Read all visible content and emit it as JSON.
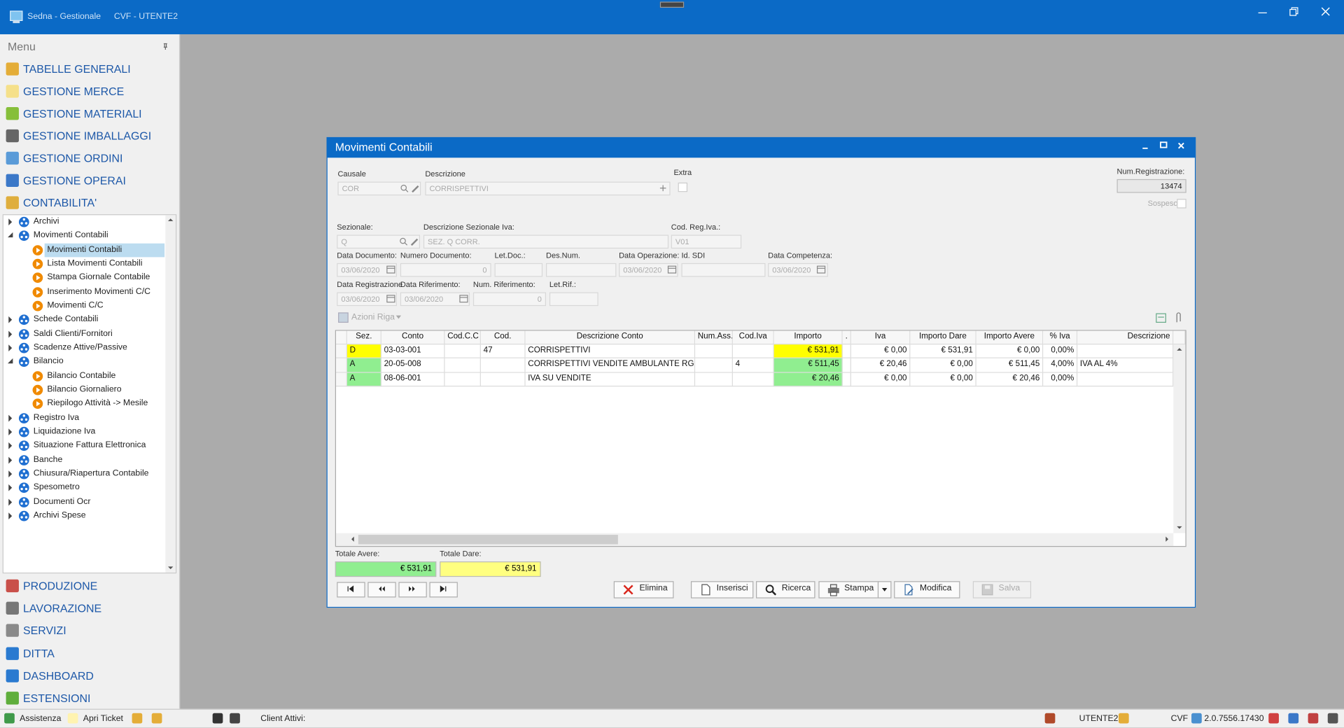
{
  "titlebar": {
    "app": "Sedna  - Gestionale",
    "company": "CVF - UTENTE2"
  },
  "menu": {
    "title": "Menu",
    "top_items": [
      "TABELLE GENERALI",
      "GESTIONE MERCE",
      "GESTIONE MATERIALI",
      "GESTIONE IMBALLAGGI",
      "GESTIONE ORDINI",
      "GESTIONE OPERAI",
      "CONTABILITA'"
    ],
    "tree": [
      {
        "label": "Archivi"
      },
      {
        "label": "Movimenti Contabili",
        "children": [
          {
            "label": "Movimenti Contabili",
            "selected": true
          },
          {
            "label": "Lista Movimenti Contabili"
          },
          {
            "label": "Stampa Giornale Contabile"
          },
          {
            "label": "Inserimento Movimenti C/C"
          },
          {
            "label": "Movimenti C/C"
          }
        ]
      },
      {
        "label": "Schede Contabili"
      },
      {
        "label": "Saldi Clienti/Fornitori"
      },
      {
        "label": "Scadenze Attive/Passive"
      },
      {
        "label": "Bilancio",
        "children": [
          {
            "label": "Bilancio Contabile"
          },
          {
            "label": "Bilancio Giornaliero"
          },
          {
            "label": "Riepilogo Attività -> Mesile"
          }
        ]
      },
      {
        "label": "Registro Iva"
      },
      {
        "label": "Liquidazione Iva"
      },
      {
        "label": "Situazione Fattura Elettronica"
      },
      {
        "label": "Banche"
      },
      {
        "label": "Chiusura/Riapertura Contabile"
      },
      {
        "label": "Spesometro"
      },
      {
        "label": "Documenti Ocr"
      },
      {
        "label": "Archivi Spese"
      }
    ],
    "bottom_items": [
      "PRODUZIONE",
      "LAVORAZIONE",
      "SERVIZI",
      "DITTA",
      "DASHBOARD",
      "ESTENSIONI"
    ]
  },
  "window": {
    "title": "Movimenti Contabili",
    "fields": {
      "causale": {
        "label": "Causale",
        "value": "COR"
      },
      "descrizione": {
        "label": "Descrizione",
        "value": "CORRISPETTIVI"
      },
      "extra": {
        "label": "Extra"
      },
      "num_registrazione": {
        "label": "Num.Registrazione:",
        "value": "13474"
      },
      "sospeso": {
        "label": "Sospeso"
      },
      "sezionale": {
        "label": "Sezionale:",
        "value": "Q"
      },
      "descrizione_sezionale": {
        "label": "Descrizione Sezionale Iva:",
        "value": "SEZ. Q CORR."
      },
      "cod_reg_iva": {
        "label": "Cod. Reg.Iva.:",
        "value": "V01"
      },
      "data_documento": {
        "label": "Data Documento:",
        "value": "03/06/2020"
      },
      "numero_documento": {
        "label": "Numero Documento:",
        "value": "0"
      },
      "let_doc": {
        "label": "Let.Doc.:"
      },
      "des_num": {
        "label": "Des.Num."
      },
      "data_operazione": {
        "label": "Data Operazione:",
        "value": "03/06/2020"
      },
      "id_sdi": {
        "label": "Id. SDI"
      },
      "data_competenza": {
        "label": "Data Competenza:",
        "value": "03/06/2020"
      },
      "data_registrazione": {
        "label": "Data Registrazione",
        "value": "03/06/2020"
      },
      "data_riferimento": {
        "label": "Data Riferimento:",
        "value": "03/06/2020"
      },
      "num_riferimento": {
        "label": "Num. Riferimento:",
        "value": "0"
      },
      "let_rif": {
        "label": "Let.Rif.:"
      }
    },
    "row_actions": "Azioni Riga",
    "grid": {
      "columns": [
        "Sez.",
        "Conto",
        "Cod.C.C",
        "Cod.",
        "Descrizione Conto",
        "Num.Ass.",
        "Cod.Iva",
        "Importo",
        ".",
        "Iva",
        "Importo Dare",
        "Importo Avere",
        "% Iva",
        "Descrizione"
      ],
      "rows": [
        {
          "color": "#ffff00",
          "cells": [
            "D",
            "03-03-001",
            null,
            "47",
            "CORRISPETTIVI",
            null,
            null,
            "€ 531,91",
            null,
            "€ 0,00",
            "€ 531,91",
            "€ 0,00",
            "0,00%",
            null
          ]
        },
        {
          "color": "#90ee90",
          "cells": [
            "A",
            "20-05-008",
            null,
            null,
            "CORRISPETTIVI VENDITE AMBULANTE RG",
            null,
            "4",
            "€ 511,45",
            null,
            "€ 20,46",
            "€ 0,00",
            "€ 511,45",
            "4,00%",
            "IVA AL 4%"
          ]
        },
        {
          "color": "#90ee90",
          "cells": [
            "A",
            "08-06-001",
            null,
            null,
            "IVA SU VENDITE",
            null,
            null,
            "€ 20,46",
            null,
            "€ 0,00",
            "€ 0,00",
            "€ 20,46",
            "0,00%",
            null
          ]
        }
      ]
    },
    "totals": [
      {
        "label": "Totale Avere:",
        "value": "€ 531,91",
        "color": "#90ee90"
      },
      {
        "label": "Totale Dare:",
        "value": "€ 531,91",
        "color": "#ffff80"
      }
    ],
    "buttons": [
      {
        "label": "Elimina"
      },
      {
        "label": "Inserisci"
      },
      {
        "label": "Ricerca"
      },
      {
        "label": "Stampa"
      },
      {
        "label": "Modifica"
      },
      {
        "label": "Salva",
        "disabled": true
      }
    ]
  },
  "statusbar": {
    "assistenza": "Assistenza",
    "ticket": "Apri Ticket",
    "clients": "Client Attivi:",
    "user": "UTENTE2",
    "company": "CVF",
    "version": "2.0.7556.17430"
  }
}
